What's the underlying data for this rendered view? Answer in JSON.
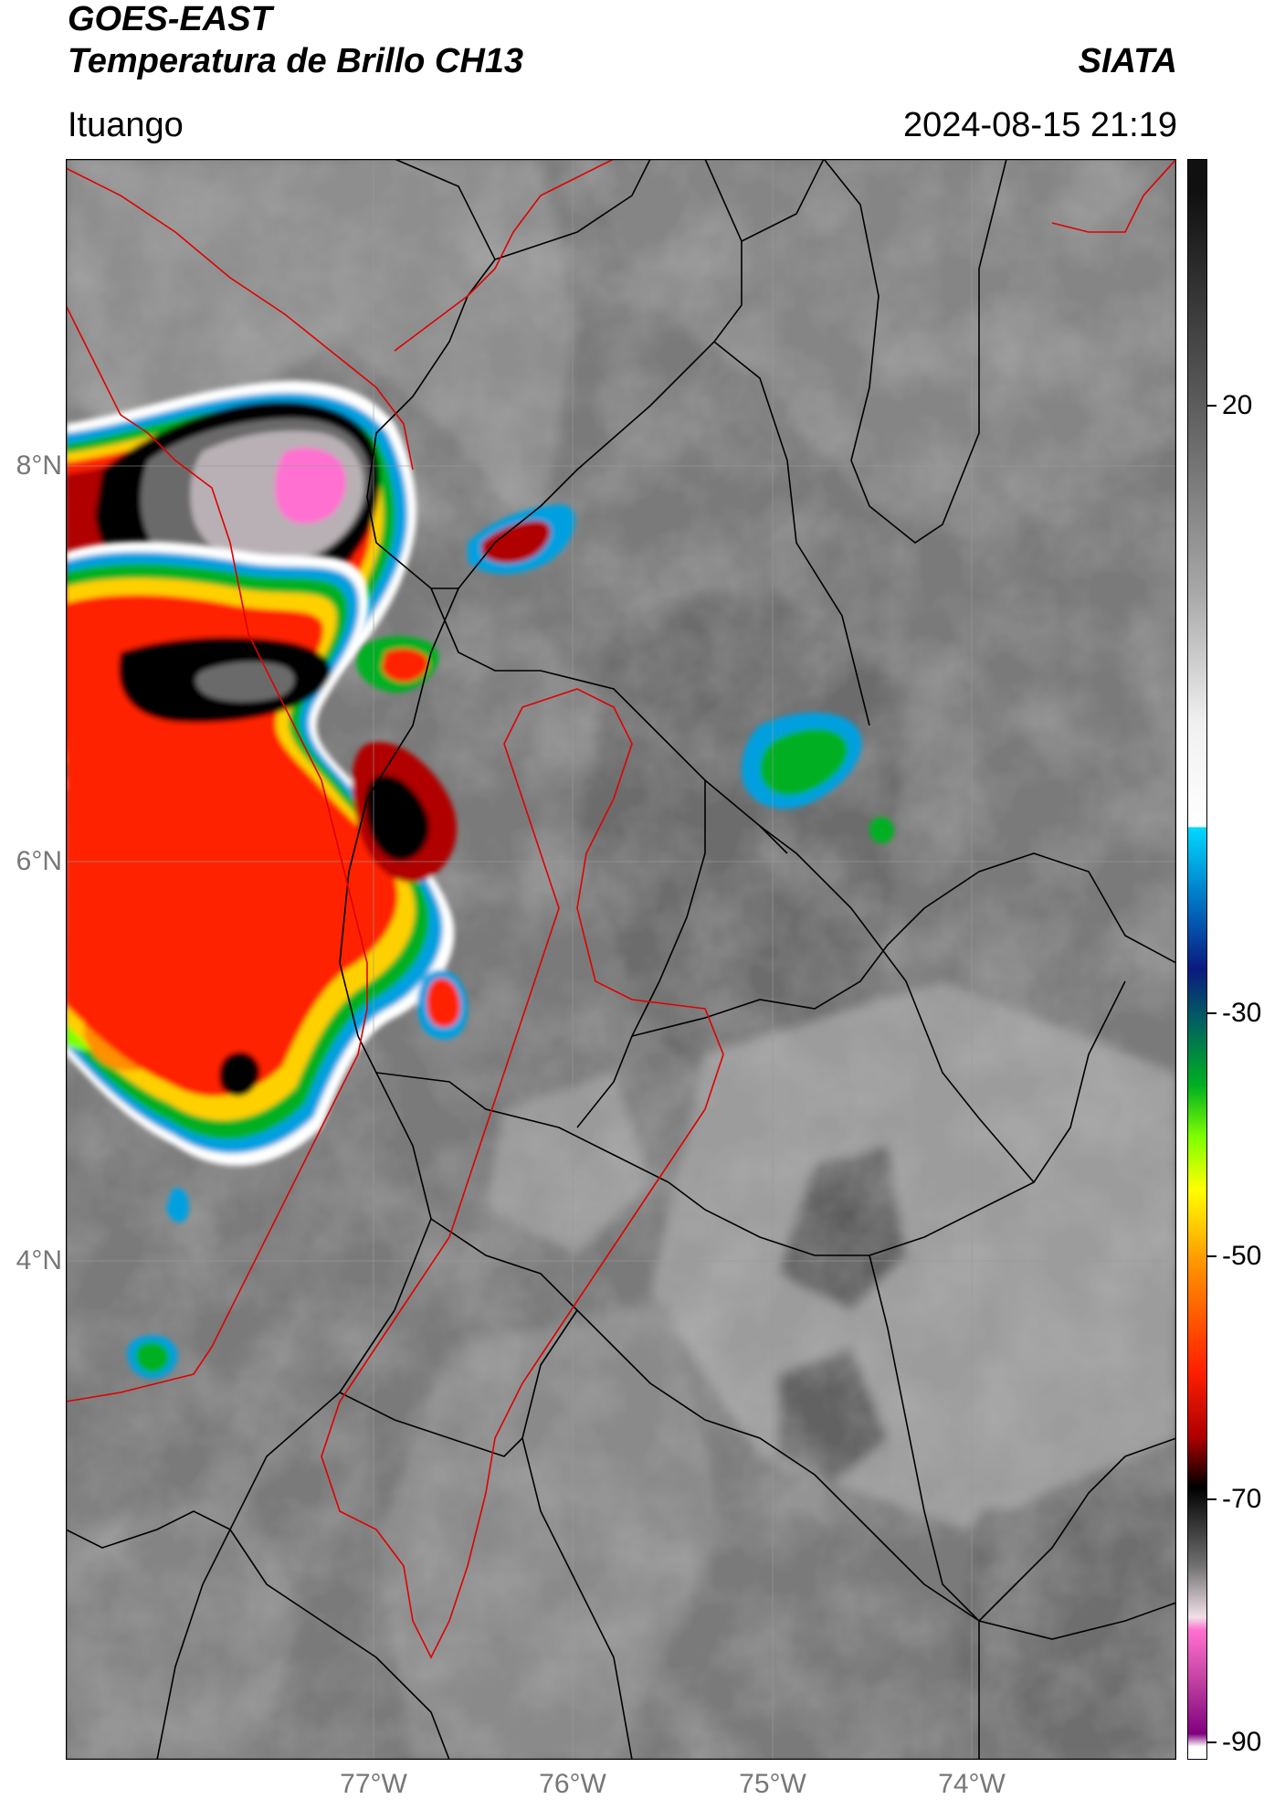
{
  "header": {
    "title_line1": "GOES-EAST",
    "title_line2": "Temperatura de Brillo CH13",
    "organization": "SIATA",
    "location": "Ituango",
    "datetime": "2024-08-15 21:19"
  },
  "axes": {
    "lat_labels": [
      "8°N",
      "6°N",
      "4°N"
    ],
    "lon_labels": [
      "77°W",
      "76°W",
      "75°W",
      "74°W"
    ]
  },
  "colorbar": {
    "labels": [
      "20",
      "-30",
      "-50",
      "-70",
      "-90"
    ],
    "stops": [
      {
        "v": 31,
        "c": "#101010"
      },
      {
        "v": 15,
        "c": "#5a5a5a"
      },
      {
        "v": 0,
        "c": "#a8a8a8"
      },
      {
        "v": -10,
        "c": "#f0f0f0"
      },
      {
        "v": -18,
        "c": "#ffffff"
      },
      {
        "v": -18.1,
        "c": "#00d8ff"
      },
      {
        "v": -24,
        "c": "#0070c0"
      },
      {
        "v": -29,
        "c": "#0a1a80"
      },
      {
        "v": -33,
        "c": "#006060"
      },
      {
        "v": -38,
        "c": "#00b020"
      },
      {
        "v": -42,
        "c": "#80ff00"
      },
      {
        "v": -46,
        "c": "#ffff00"
      },
      {
        "v": -52,
        "c": "#ff9000"
      },
      {
        "v": -60,
        "c": "#ff2000"
      },
      {
        "v": -65,
        "c": "#b00000"
      },
      {
        "v": -69,
        "c": "#000000"
      },
      {
        "v": -75,
        "c": "#707070"
      },
      {
        "v": -79,
        "c": "#f0e0e8"
      },
      {
        "v": -80,
        "c": "#ff70d0"
      },
      {
        "v": -84,
        "c": "#c040a0"
      },
      {
        "v": -88,
        "c": "#800080"
      },
      {
        "v": -89,
        "c": "#ffffff"
      }
    ]
  }
}
